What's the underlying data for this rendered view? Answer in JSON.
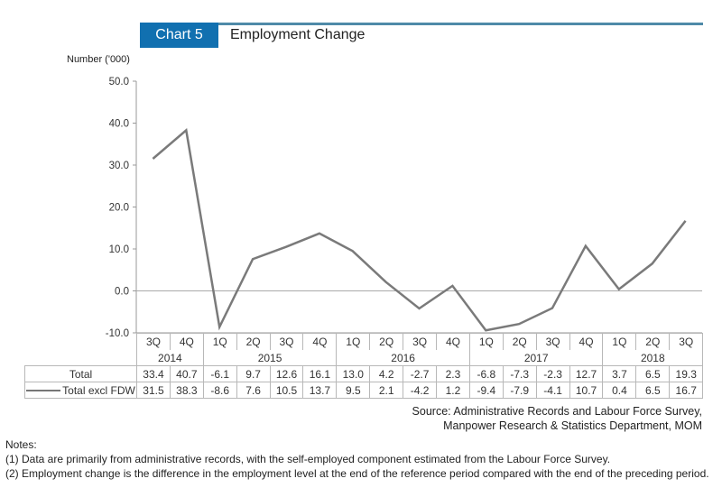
{
  "header": {
    "chart_badge": "Chart 5",
    "title": "Employment Change"
  },
  "colors": {
    "badge": "#1170b0",
    "rule": "#4f8aa8",
    "line": "#7a7a7a"
  },
  "chart_data": {
    "type": "line",
    "title": "Employment Change",
    "ylabel": "Number ('000)",
    "xlabel": "",
    "ylim": [
      -10,
      50
    ],
    "yticks": [
      "50.0",
      "40.0",
      "30.0",
      "20.0",
      "10.0",
      "0.0",
      "-10.0"
    ],
    "ytick_values": [
      50,
      40,
      30,
      20,
      10,
      0,
      -10
    ],
    "grid": false,
    "quarters": [
      "3Q",
      "4Q",
      "1Q",
      "2Q",
      "3Q",
      "4Q",
      "1Q",
      "2Q",
      "3Q",
      "4Q",
      "1Q",
      "2Q",
      "3Q",
      "4Q",
      "1Q",
      "2Q",
      "3Q"
    ],
    "years": [
      {
        "label": "2014",
        "span": 2
      },
      {
        "label": "2015",
        "span": 4
      },
      {
        "label": "2016",
        "span": 4
      },
      {
        "label": "2017",
        "span": 4
      },
      {
        "label": "2018",
        "span": 3
      }
    ],
    "series": [
      {
        "name": "Total",
        "plotted": false,
        "values": [
          33.4,
          40.7,
          -6.1,
          9.7,
          12.6,
          16.1,
          13.0,
          4.2,
          -2.7,
          2.3,
          -6.8,
          -7.3,
          -2.3,
          12.7,
          3.7,
          6.5,
          19.3
        ]
      },
      {
        "name": "Total excl FDW",
        "plotted": true,
        "values": [
          31.5,
          38.3,
          -8.6,
          7.6,
          10.5,
          13.7,
          9.5,
          2.1,
          -4.2,
          1.2,
          -9.4,
          -7.9,
          -4.1,
          10.7,
          0.4,
          6.5,
          16.7
        ]
      }
    ],
    "table_display": {
      "Total": [
        "33.4",
        "40.7",
        "-6.1",
        "9.7",
        "12.6",
        "16.1",
        "13.0",
        "4.2",
        "-2.7",
        "2.3",
        "-6.8",
        "-7.3",
        "-2.3",
        "12.7",
        "3.7",
        "6.5",
        "19.3"
      ],
      "Total excl FDW": [
        "31.5",
        "38.3",
        "-8.6",
        "7.6",
        "10.5",
        "13.7",
        "9.5",
        "2.1",
        "-4.2",
        "1.2",
        "-9.4",
        "-7.9",
        "-4.1",
        "10.7",
        "0.4",
        "6.5",
        "16.7"
      ]
    }
  },
  "source": {
    "line1": "Source: Administrative Records and Labour Force Survey,",
    "line2": "Manpower Research & Statistics Department, MOM"
  },
  "notes": {
    "heading": "Notes:",
    "items": [
      "(1)  Data are primarily from administrative records, with the self-employed component estimated from the Labour Force Survey.",
      "(2)  Employment change is the difference in the employment level at the end of the reference period compared with the end of the preceding period."
    ]
  }
}
